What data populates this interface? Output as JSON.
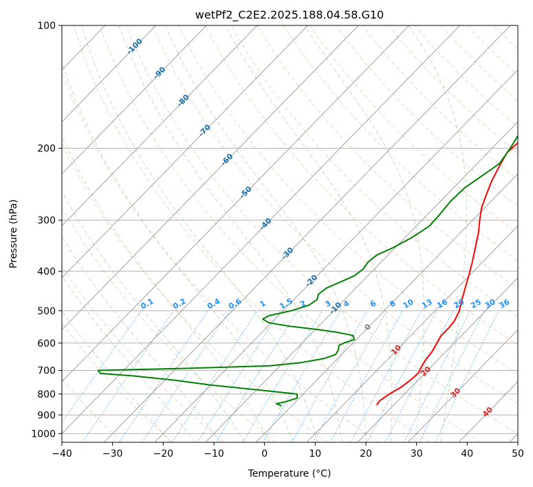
{
  "chart_data": {
    "type": "line",
    "title": "wetPf2_C2E2.2025.188.04.58.G10",
    "xlabel": "Temperature (°C)",
    "ylabel": "Pressure (hPa)",
    "xlim": [
      -40,
      50
    ],
    "ylim": [
      1050,
      100
    ],
    "y_scale": "log",
    "grid": true,
    "x_ticks": [
      -40,
      -30,
      -20,
      -10,
      0,
      10,
      20,
      30,
      40,
      50
    ],
    "y_ticks": [
      100,
      200,
      300,
      400,
      500,
      600,
      700,
      800,
      900,
      1000
    ],
    "series": [
      {
        "color": "#ff0000",
        "points": [
          [
            850,
            16.6
          ],
          [
            830,
            16.4
          ],
          [
            800,
            17.0
          ],
          [
            770,
            18.0
          ],
          [
            740,
            18.5
          ],
          [
            710,
            18.7
          ],
          [
            690,
            18.2
          ],
          [
            660,
            17.6
          ],
          [
            630,
            17.3
          ],
          [
            600,
            16.6
          ],
          [
            575,
            16.0
          ],
          [
            550,
            16.0
          ],
          [
            530,
            15.8
          ],
          [
            500,
            14.8
          ],
          [
            470,
            13.2
          ],
          [
            440,
            11.6
          ],
          [
            410,
            9.9
          ],
          [
            380,
            8.0
          ],
          [
            350,
            5.8
          ],
          [
            320,
            3.4
          ],
          [
            300,
            1.4
          ],
          [
            280,
            -0.6
          ],
          [
            260,
            -2.2
          ],
          [
            240,
            -3.8
          ],
          [
            220,
            -5.2
          ],
          [
            205,
            -6.2
          ],
          [
            195,
            -6.0
          ],
          [
            185,
            -4.4
          ],
          [
            175,
            -1.0
          ],
          [
            168,
            3.0
          ],
          [
            162,
            5.8
          ],
          [
            155,
            6.6
          ],
          [
            145,
            7.4
          ],
          [
            135,
            8.2
          ],
          [
            125,
            10.0
          ],
          [
            115,
            11.6
          ],
          [
            107,
            12.6
          ],
          [
            100,
            13.4
          ]
        ]
      },
      {
        "color": "#008000",
        "points": [
          [
            855,
            -2.0
          ],
          [
            845,
            -3.4
          ],
          [
            835,
            -2.0
          ],
          [
            818,
            -0.4
          ],
          [
            800,
            -1.2
          ],
          [
            785,
            -8.0
          ],
          [
            760,
            -20.0
          ],
          [
            740,
            -28.0
          ],
          [
            722,
            -37.0
          ],
          [
            712,
            -44.0
          ],
          [
            700,
            -45.0
          ],
          [
            692,
            -28.0
          ],
          [
            682,
            -12.0
          ],
          [
            670,
            -6.5
          ],
          [
            655,
            -2.8
          ],
          [
            640,
            -1.2
          ],
          [
            622,
            -1.6
          ],
          [
            608,
            -2.3
          ],
          [
            598,
            -1.6
          ],
          [
            588,
            -0.4
          ],
          [
            575,
            -1.4
          ],
          [
            565,
            -5.0
          ],
          [
            555,
            -10.0
          ],
          [
            545,
            -16.0
          ],
          [
            535,
            -20.5
          ],
          [
            524,
            -22.4
          ],
          [
            514,
            -21.8
          ],
          [
            500,
            -18.4
          ],
          [
            485,
            -16.0
          ],
          [
            470,
            -15.4
          ],
          [
            455,
            -16.2
          ],
          [
            440,
            -15.8
          ],
          [
            425,
            -14.2
          ],
          [
            410,
            -12.6
          ],
          [
            395,
            -12.2
          ],
          [
            380,
            -12.6
          ],
          [
            365,
            -12.2
          ],
          [
            350,
            -10.4
          ],
          [
            330,
            -8.6
          ],
          [
            310,
            -7.4
          ],
          [
            290,
            -7.6
          ],
          [
            270,
            -8.0
          ],
          [
            250,
            -7.8
          ],
          [
            232,
            -6.6
          ],
          [
            218,
            -5.6
          ],
          [
            200,
            -6.4
          ],
          [
            185,
            -7.4
          ],
          [
            170,
            -8.8
          ],
          [
            160,
            -10.4
          ],
          [
            152,
            -10.2
          ],
          [
            145,
            -8.4
          ],
          [
            135,
            -5.8
          ],
          [
            125,
            -3.6
          ],
          [
            113,
            -1.0
          ],
          [
            100,
            1.4
          ]
        ]
      }
    ],
    "dry_adiabats": [
      -30,
      -20,
      -10,
      0,
      10,
      20,
      30,
      40,
      50,
      60,
      70,
      80,
      90,
      100,
      110,
      120,
      130,
      140,
      150,
      160,
      170,
      180,
      190,
      200
    ],
    "moist_adiabats": [
      -20,
      -15,
      -10,
      -5,
      0,
      5,
      10,
      15,
      20,
      25,
      30,
      35
    ],
    "mixing_ratios": [
      0.1,
      0.2,
      0.4,
      0.6,
      1,
      1.5,
      2,
      3,
      4,
      6,
      8,
      10,
      13,
      16,
      20,
      25,
      30,
      36
    ],
    "isotherm_labels": [
      "-100",
      "-90",
      "-80",
      "-70",
      "-60",
      "-50",
      "-40",
      "-30",
      "-20",
      "-10",
      "0"
    ],
    "isotherm_label_color": "#1f6fa8",
    "warm_labels": [
      "10",
      "20",
      "30",
      "40"
    ],
    "warm_label_color": "#d62728",
    "zero_label_color": "#808080",
    "mixing_label_color": "#1e90ff"
  }
}
